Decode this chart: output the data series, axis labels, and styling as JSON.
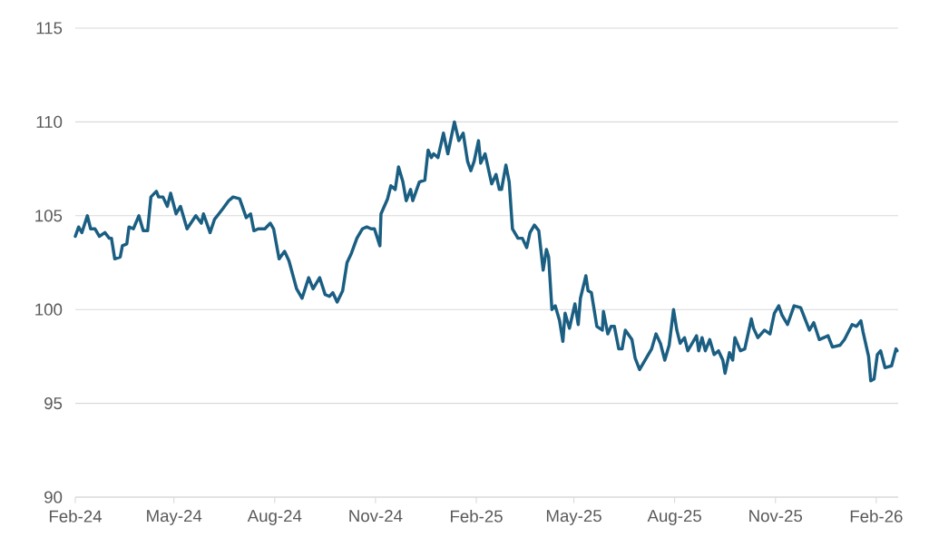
{
  "chart_data": {
    "type": "line",
    "grid": "y",
    "xlim": [
      "2024-02-01",
      "2026-02-21"
    ],
    "ylim": [
      90,
      115
    ],
    "yticks": [
      90,
      95,
      100,
      105,
      110,
      115
    ],
    "xticks": [
      {
        "value": "2024-02-01",
        "label": "Feb-24"
      },
      {
        "value": "2024-05-01",
        "label": "May-24"
      },
      {
        "value": "2024-08-01",
        "label": "Aug-24"
      },
      {
        "value": "2024-11-01",
        "label": "Nov-24"
      },
      {
        "value": "2025-02-01",
        "label": "Feb-25"
      },
      {
        "value": "2025-05-01",
        "label": "May-25"
      },
      {
        "value": "2025-08-01",
        "label": "Aug-25"
      },
      {
        "value": "2025-11-01",
        "label": "Nov-25"
      },
      {
        "value": "2026-02-01",
        "label": "Feb-26"
      }
    ],
    "series": [
      {
        "color": "#1a5e82",
        "x": [
          "2024-02-01",
          "2024-02-04",
          "2024-02-07",
          "2024-02-12",
          "2024-02-15",
          "2024-02-19",
          "2024-02-23",
          "2024-02-28",
          "2024-03-03",
          "2024-03-05",
          "2024-03-08",
          "2024-03-13",
          "2024-03-15",
          "2024-03-19",
          "2024-03-21",
          "2024-03-25",
          "2024-03-30",
          "2024-04-03",
          "2024-04-07",
          "2024-04-10",
          "2024-04-15",
          "2024-04-17",
          "2024-04-21",
          "2024-04-25",
          "2024-04-28",
          "2024-05-03",
          "2024-05-07",
          "2024-05-13",
          "2024-05-21",
          "2024-05-26",
          "2024-05-28",
          "2024-06-03",
          "2024-06-07",
          "2024-06-11",
          "2024-06-15",
          "2024-06-20",
          "2024-06-24",
          "2024-06-30",
          "2024-07-06",
          "2024-07-10",
          "2024-07-13",
          "2024-07-17",
          "2024-07-23",
          "2024-07-28",
          "2024-07-31",
          "2024-08-05",
          "2024-08-10",
          "2024-08-14",
          "2024-08-21",
          "2024-08-26",
          "2024-09-01",
          "2024-09-05",
          "2024-09-11",
          "2024-09-16",
          "2024-09-20",
          "2024-09-23",
          "2024-09-27",
          "2024-10-02",
          "2024-10-06",
          "2024-10-10",
          "2024-10-15",
          "2024-10-20",
          "2024-10-24",
          "2024-10-28",
          "2024-10-31",
          "2024-11-05",
          "2024-11-06",
          "2024-11-12",
          "2024-11-15",
          "2024-11-19",
          "2024-11-22",
          "2024-11-26",
          "2024-11-29",
          "2024-12-03",
          "2024-12-05",
          "2024-12-11",
          "2024-12-16",
          "2024-12-19",
          "2024-12-22",
          "2024-12-24",
          "2024-12-28",
          "2025-01-02",
          "2025-01-06",
          "2025-01-12",
          "2025-01-16",
          "2025-01-20",
          "2025-01-24",
          "2025-01-27",
          "2025-01-30",
          "2025-02-03",
          "2025-02-05",
          "2025-02-09",
          "2025-02-15",
          "2025-02-19",
          "2025-02-22",
          "2025-02-24",
          "2025-02-28",
          "2025-03-03",
          "2025-03-06",
          "2025-03-11",
          "2025-03-15",
          "2025-03-19",
          "2025-03-22",
          "2025-03-26",
          "2025-03-30",
          "2025-04-03",
          "2025-04-06",
          "2025-04-08",
          "2025-04-11",
          "2025-04-14",
          "2025-04-18",
          "2025-04-21",
          "2025-04-23",
          "2025-04-27",
          "2025-05-02",
          "2025-05-05",
          "2025-05-07",
          "2025-05-12",
          "2025-05-14",
          "2025-05-17",
          "2025-05-22",
          "2025-05-27",
          "2025-05-28",
          "2025-06-01",
          "2025-06-04",
          "2025-06-07",
          "2025-06-11",
          "2025-06-14",
          "2025-06-17",
          "2025-06-23",
          "2025-06-26",
          "2025-06-30",
          "2025-07-07",
          "2025-07-11",
          "2025-07-15",
          "2025-07-19",
          "2025-07-23",
          "2025-07-27",
          "2025-07-31",
          "2025-08-03",
          "2025-08-06",
          "2025-08-10",
          "2025-08-13",
          "2025-08-17",
          "2025-08-21",
          "2025-08-23",
          "2025-08-26",
          "2025-08-29",
          "2025-09-02",
          "2025-09-06",
          "2025-09-10",
          "2025-09-14",
          "2025-09-16",
          "2025-09-20",
          "2025-09-23",
          "2025-09-25",
          "2025-09-30",
          "2025-10-04",
          "2025-10-10",
          "2025-10-12",
          "2025-10-16",
          "2025-10-22",
          "2025-10-27",
          "2025-10-31",
          "2025-11-04",
          "2025-11-07",
          "2025-11-12",
          "2025-11-18",
          "2025-11-24",
          "2025-11-28",
          "2025-12-02",
          "2025-12-06",
          "2025-12-11",
          "2025-12-19",
          "2025-12-23",
          "2025-12-30",
          "2026-01-03",
          "2026-01-10",
          "2026-01-14",
          "2026-01-18",
          "2026-01-20",
          "2026-01-25",
          "2026-01-27",
          "2026-01-30",
          "2026-02-02",
          "2026-02-05",
          "2026-02-09",
          "2026-02-15",
          "2026-02-19",
          "2026-02-20"
        ],
        "values": [
          103.9,
          104.4,
          104.1,
          105.0,
          104.3,
          104.3,
          103.9,
          104.1,
          103.8,
          103.8,
          102.7,
          102.8,
          103.4,
          103.5,
          104.4,
          104.3,
          105.0,
          104.2,
          104.2,
          106.0,
          106.3,
          106.0,
          106.0,
          105.5,
          106.2,
          105.1,
          105.5,
          104.3,
          105.0,
          104.6,
          105.1,
          104.1,
          104.8,
          105.1,
          105.4,
          105.8,
          106.0,
          105.9,
          104.9,
          105.1,
          104.2,
          104.3,
          104.3,
          104.6,
          104.3,
          102.7,
          103.1,
          102.6,
          101.1,
          100.6,
          101.7,
          101.1,
          101.7,
          100.8,
          100.7,
          100.9,
          100.4,
          101.0,
          102.5,
          103.0,
          103.8,
          104.3,
          104.4,
          104.3,
          104.3,
          103.4,
          105.1,
          105.9,
          106.6,
          106.4,
          107.6,
          106.8,
          105.8,
          106.4,
          105.8,
          106.8,
          106.9,
          108.5,
          108.1,
          108.3,
          108.1,
          109.4,
          108.3,
          110.0,
          109.0,
          109.4,
          107.9,
          107.4,
          107.9,
          109.0,
          107.8,
          108.3,
          106.7,
          107.2,
          106.4,
          106.4,
          107.7,
          106.8,
          104.3,
          103.8,
          103.8,
          103.3,
          104.1,
          104.5,
          104.2,
          102.1,
          103.2,
          102.8,
          100.0,
          100.2,
          99.4,
          98.3,
          99.8,
          99.0,
          100.3,
          99.2,
          100.6,
          101.8,
          101.0,
          100.9,
          99.1,
          98.9,
          99.9,
          98.7,
          99.1,
          99.1,
          97.9,
          97.9,
          98.9,
          98.4,
          97.4,
          96.8,
          97.5,
          97.9,
          98.7,
          98.2,
          97.3,
          98.1,
          100.0,
          98.9,
          98.2,
          98.5,
          97.8,
          98.2,
          98.6,
          97.8,
          98.5,
          97.8,
          98.4,
          97.6,
          97.8,
          97.3,
          96.6,
          97.7,
          97.3,
          98.5,
          97.8,
          97.9,
          99.5,
          99.0,
          98.5,
          98.9,
          98.7,
          99.8,
          100.2,
          99.7,
          99.2,
          100.2,
          100.1,
          99.5,
          98.9,
          99.3,
          98.4,
          98.6,
          98.0,
          98.1,
          98.4,
          99.2,
          99.1,
          99.4,
          98.8,
          97.5,
          96.2,
          96.3,
          97.6,
          97.8,
          96.9,
          97.0,
          97.9,
          97.8
        ]
      }
    ]
  }
}
